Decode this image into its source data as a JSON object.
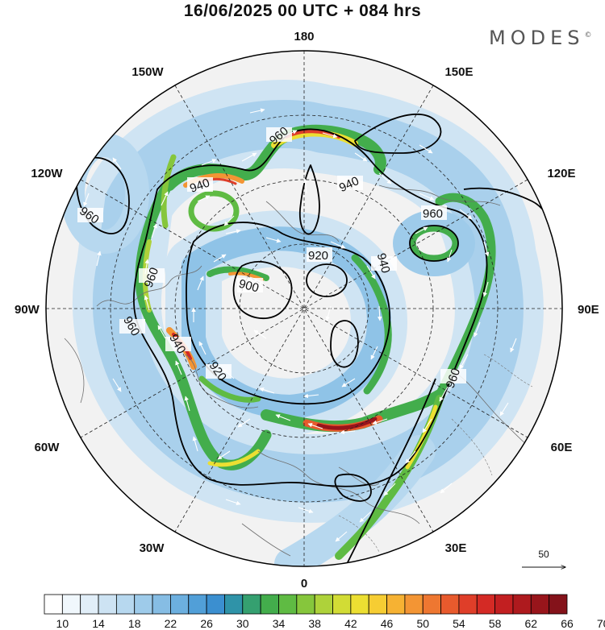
{
  "title": "16/06/2025  00 UTC  + 084 hrs",
  "brand": "MODES",
  "brand_mark": "©",
  "longitude_labels": {
    "top": "180",
    "bottom": "0",
    "left": "90W",
    "right": "90E",
    "upper_left_1": "150W",
    "upper_left_2": "120W",
    "upper_right_1": "150E",
    "upper_right_2": "120E",
    "lower_left_1": "60W",
    "lower_left_2": "30W",
    "lower_right_1": "60E",
    "lower_right_2": "30E"
  },
  "contour_labels": [
    "960",
    "940",
    "940",
    "960",
    "960",
    "920",
    "900",
    "960",
    "960",
    "940",
    "920",
    "940",
    "960"
  ],
  "reference_vector": {
    "label": "50"
  },
  "colorbar": {
    "ticks": [
      "10",
      "14",
      "18",
      "22",
      "26",
      "30",
      "34",
      "38",
      "42",
      "46",
      "50",
      "54",
      "58",
      "62",
      "66",
      "70"
    ],
    "colors": [
      "#ffffff",
      "#f0f7fc",
      "#e1eef8",
      "#cde3f3",
      "#b7d8ef",
      "#9ecbea",
      "#86bde4",
      "#6cafdf",
      "#519fd8",
      "#3b8fd0",
      "#2f93a8",
      "#35a070",
      "#43ad4c",
      "#5fbb43",
      "#86c63c",
      "#aed23a",
      "#d2dc35",
      "#ecdf32",
      "#f6cd33",
      "#f6b233",
      "#f39534",
      "#ee7731",
      "#e85a2d",
      "#df3e29",
      "#d42a25",
      "#c21f21",
      "#ae1a1e",
      "#98151b",
      "#84121a"
    ]
  }
}
